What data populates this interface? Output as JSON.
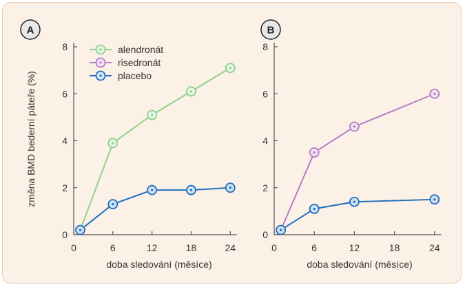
{
  "chart_data": [
    {
      "type": "line",
      "panel_label": "A",
      "ylabel": "změna BMD bederní páteře (%)",
      "xlabel": "doba sledování (měsíce)",
      "xticks": [
        0,
        6,
        12,
        18,
        24
      ],
      "yticks": [
        0,
        2,
        4,
        6,
        8
      ],
      "xlim": [
        0,
        25
      ],
      "ylim": [
        0,
        8
      ],
      "grid": false,
      "legend_position": "top-left",
      "series": [
        {
          "name": "alendronát",
          "color": "#8fd18a",
          "x": [
            1,
            6,
            12,
            18,
            24
          ],
          "y": [
            0.2,
            3.9,
            5.1,
            6.1,
            7.1
          ]
        },
        {
          "name": "placebo",
          "color": "#1f6fbf",
          "x": [
            1,
            6,
            12,
            18,
            24
          ],
          "y": [
            0.2,
            1.3,
            1.9,
            1.9,
            2.0
          ]
        }
      ]
    },
    {
      "type": "line",
      "panel_label": "B",
      "ylabel": "",
      "xlabel": "doba sledování (měsíce)",
      "xticks": [
        0,
        6,
        12,
        18,
        24
      ],
      "yticks": [
        0,
        2,
        4,
        6,
        8
      ],
      "xlim": [
        0,
        25
      ],
      "ylim": [
        0,
        8
      ],
      "grid": false,
      "series": [
        {
          "name": "risedronát",
          "color": "#b57cc7",
          "x": [
            1,
            6,
            12,
            24
          ],
          "y": [
            0.2,
            3.5,
            4.6,
            6.0
          ]
        },
        {
          "name": "placebo",
          "color": "#1f6fbf",
          "x": [
            1,
            6,
            12,
            24
          ],
          "y": [
            0.2,
            1.1,
            1.4,
            1.5
          ]
        }
      ]
    }
  ],
  "legend": [
    {
      "label": "alendronát",
      "color": "#8fd18a",
      "fill": "#e3f5e1"
    },
    {
      "label": "risedronát",
      "color": "#b57cc7",
      "fill": "#f1e3f6"
    },
    {
      "label": "placebo",
      "color": "#1f6fbf",
      "fill": "#d6e8f8"
    }
  ],
  "colors": {
    "panel_background": "#fcf1e6",
    "panel_border": "#e9cdb3",
    "axis": "#555555",
    "badge_fill": "#e8e8e8"
  }
}
